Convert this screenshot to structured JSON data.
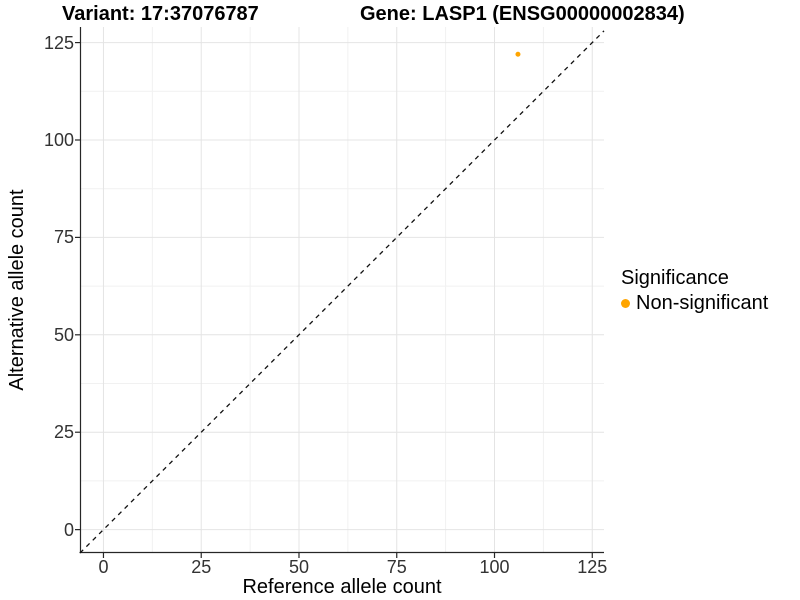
{
  "chart_data": {
    "type": "scatter",
    "titles": {
      "variant": "Variant: 17:37076787",
      "gene": "Gene: LASP1 (ENSG00000002834)"
    },
    "xlabel": "Reference allele count",
    "ylabel": "Alternative allele count",
    "x_ticks": [
      0,
      25,
      50,
      75,
      100,
      125
    ],
    "y_ticks": [
      0,
      25,
      50,
      75,
      100,
      125
    ],
    "x_minor": [
      12.5,
      37.5,
      62.5,
      87.5,
      112.5
    ],
    "y_minor": [
      12.5,
      37.5,
      62.5,
      87.5,
      112.5
    ],
    "xlim": [
      -6,
      128
    ],
    "ylim": [
      -6,
      129
    ],
    "grid": true,
    "identity_line": {
      "type": "y=x",
      "linetype": "dashed",
      "color": "#111111"
    },
    "points": [
      {
        "x": 106,
        "y": 122,
        "series": "Non-significant",
        "color": "#FFA500",
        "radius": 2.5
      }
    ],
    "legend": {
      "title": "Significance",
      "position": "right",
      "items": [
        {
          "label": "Non-significant",
          "color": "#FFA500"
        }
      ]
    },
    "colors": {
      "point_orange": "#FFA500",
      "grid_major": "#E4E4E4",
      "grid_minor": "#F1F1F1",
      "axis_line": "#262626",
      "tick_text": "#333333"
    }
  }
}
